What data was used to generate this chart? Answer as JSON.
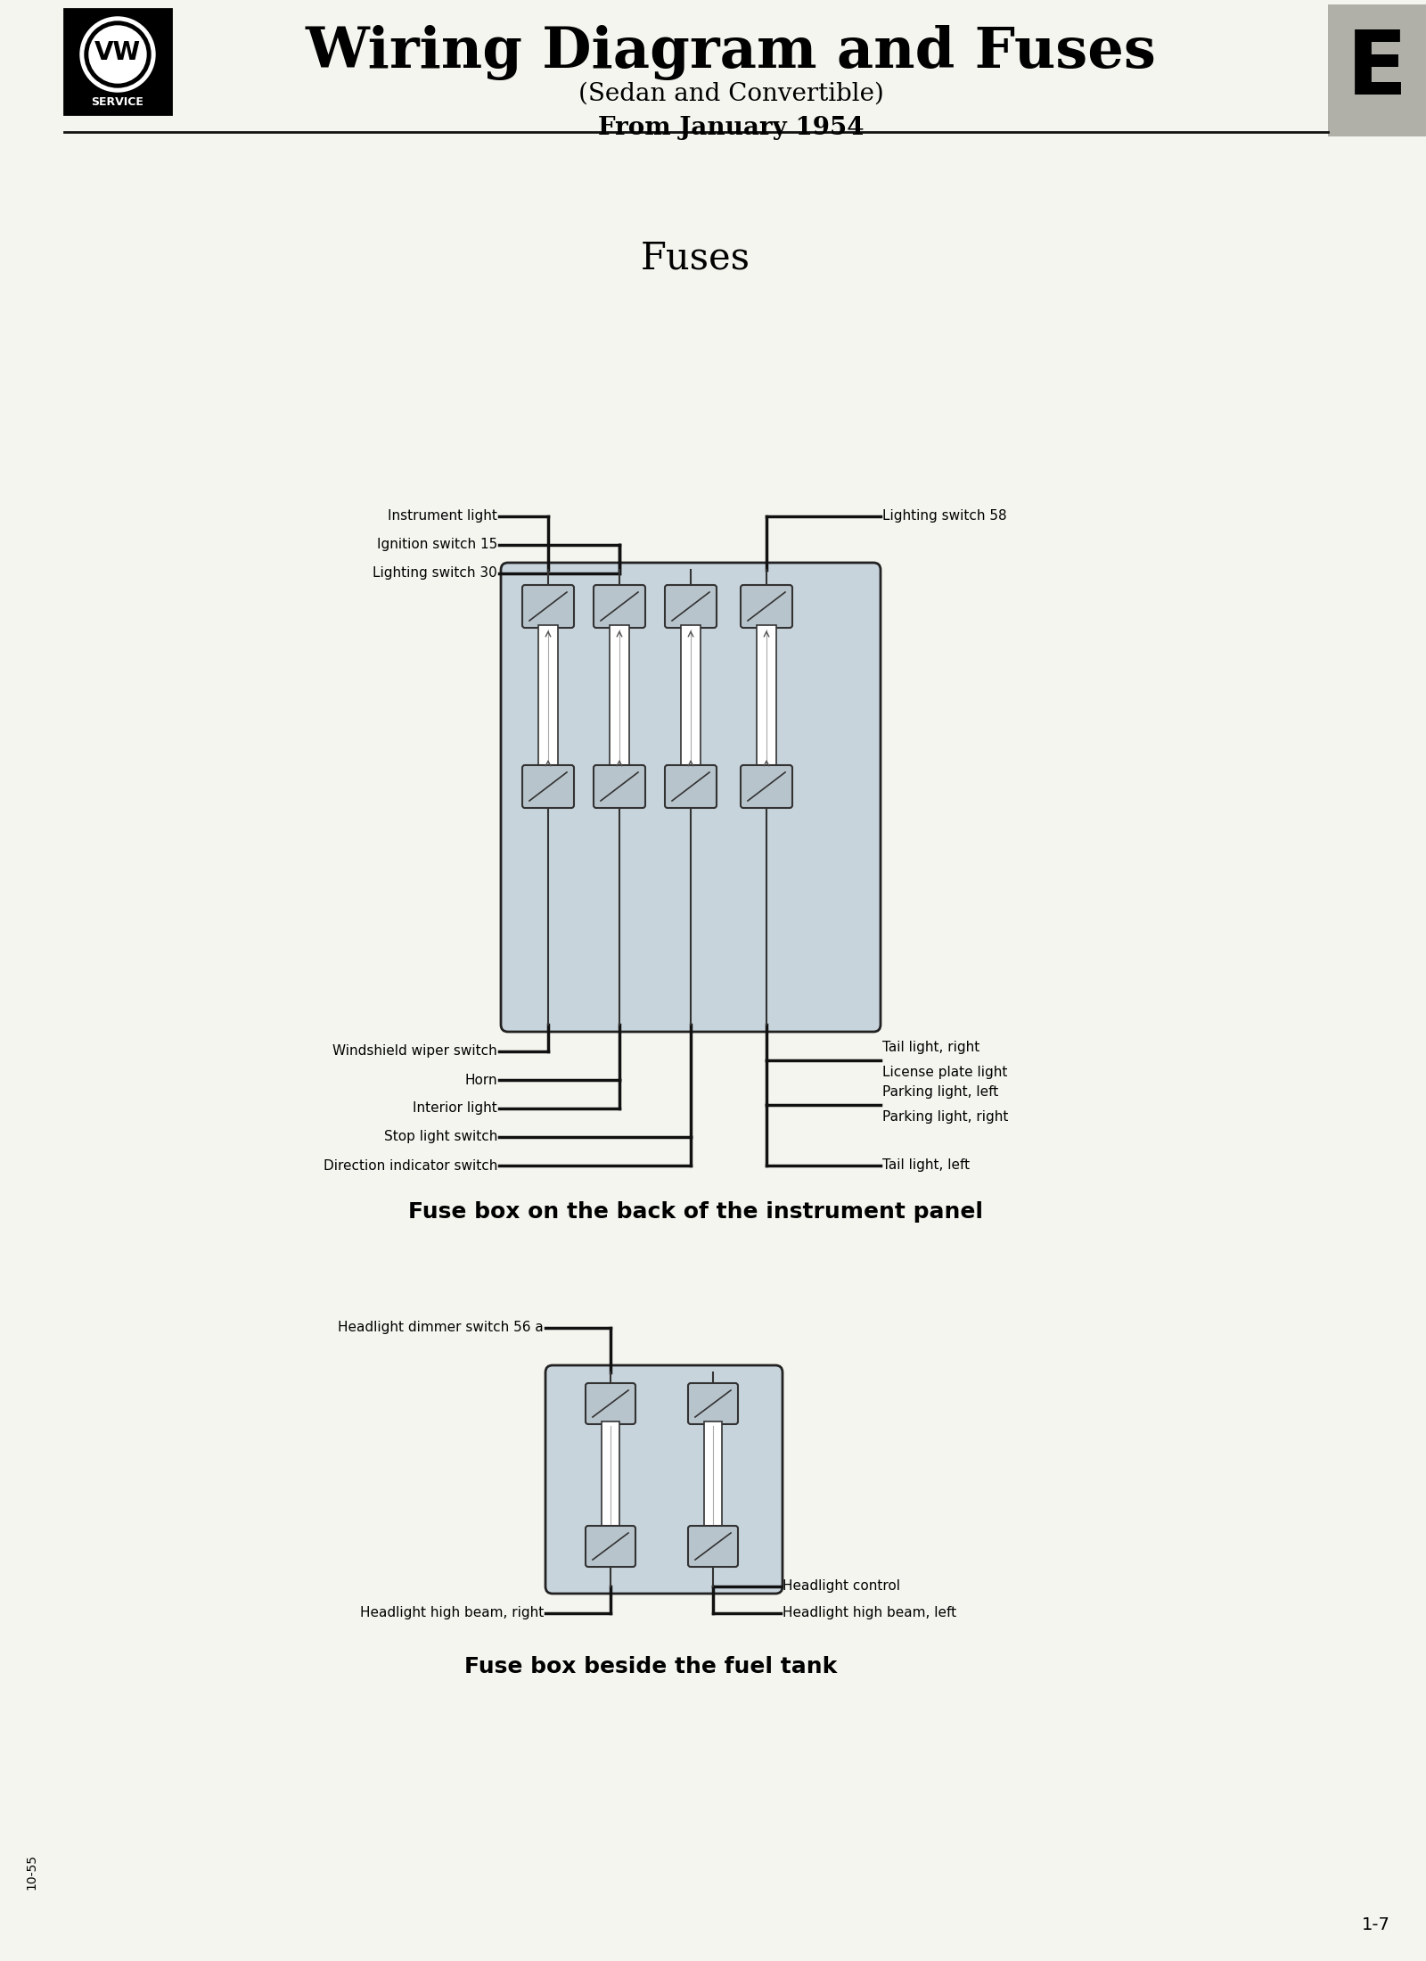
{
  "title": "Wiring Diagram and Fuses",
  "subtitle": "(Sedan and Convertible)",
  "subtitle2": "From January 1954",
  "tab_letter": "E",
  "page_number": "1-7",
  "print_code": "10-55",
  "section1_title": "Fuses",
  "section1_caption": "Fuse box on the back of the instrument panel",
  "section2_caption": "Fuse box beside the fuel tank",
  "bg_color": "#f5f5f0",
  "box_fill": "#c8d4dc",
  "box_stroke": "#222222",
  "wire_color": "#111111",
  "tab_color": "#b0b0a8",
  "header_line_color": "#111111"
}
